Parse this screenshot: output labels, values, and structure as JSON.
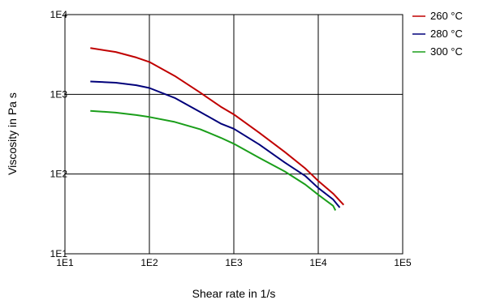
{
  "chart_data": {
    "type": "line",
    "title": "",
    "xlabel": "Shear rate in 1/s",
    "ylabel": "Viscosity in Pa s",
    "xscale": "log",
    "yscale": "log",
    "xlim": [
      10,
      100000
    ],
    "ylim": [
      10,
      10000
    ],
    "grid": true,
    "legend_position": "outside-right-top",
    "x_tick_labels": [
      "1E1",
      "1E2",
      "1E3",
      "1E4",
      "1E5"
    ],
    "y_tick_labels": [
      "1E1",
      "1E2",
      "1E3",
      "1E4"
    ],
    "series": [
      {
        "name": "260 °C",
        "color": "#c00000",
        "points": [
          [
            20,
            3800
          ],
          [
            40,
            3400
          ],
          [
            70,
            2900
          ],
          [
            100,
            2550
          ],
          [
            200,
            1700
          ],
          [
            400,
            1050
          ],
          [
            700,
            700
          ],
          [
            1000,
            560
          ],
          [
            2000,
            330
          ],
          [
            4000,
            190
          ],
          [
            7000,
            118
          ],
          [
            10000,
            82
          ],
          [
            15000,
            57
          ],
          [
            20000,
            41
          ]
        ]
      },
      {
        "name": "280 °C",
        "color": "#00007a",
        "points": [
          [
            20,
            1450
          ],
          [
            40,
            1400
          ],
          [
            70,
            1300
          ],
          [
            100,
            1200
          ],
          [
            200,
            900
          ],
          [
            400,
            600
          ],
          [
            700,
            430
          ],
          [
            1000,
            370
          ],
          [
            2000,
            235
          ],
          [
            4000,
            140
          ],
          [
            7000,
            95
          ],
          [
            10000,
            67
          ],
          [
            15000,
            48
          ],
          [
            18000,
            38
          ]
        ]
      },
      {
        "name": "300 °C",
        "color": "#1a9e1a",
        "points": [
          [
            20,
            620
          ],
          [
            40,
            590
          ],
          [
            70,
            550
          ],
          [
            100,
            520
          ],
          [
            200,
            450
          ],
          [
            400,
            365
          ],
          [
            700,
            285
          ],
          [
            1000,
            240
          ],
          [
            2000,
            160
          ],
          [
            4000,
            108
          ],
          [
            7000,
            74
          ],
          [
            10000,
            55
          ],
          [
            15000,
            40
          ],
          [
            16000,
            35
          ]
        ]
      }
    ]
  }
}
